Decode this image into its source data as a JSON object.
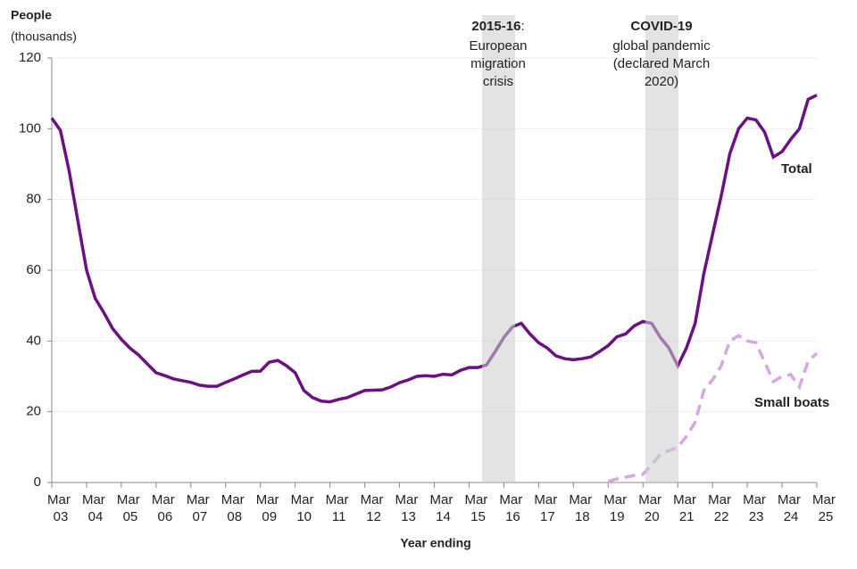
{
  "chart_data": {
    "type": "line",
    "y_label": "People",
    "y_label_sub": "(thousands)",
    "x_label": "Year ending",
    "categories": [
      "Mar 03",
      null,
      null,
      null,
      "Mar 04",
      null,
      null,
      null,
      "Mar 05",
      null,
      null,
      null,
      "Mar 06",
      null,
      null,
      null,
      "Mar 07",
      null,
      null,
      null,
      "Mar 08",
      null,
      null,
      null,
      "Mar 09",
      null,
      null,
      null,
      "Mar 10",
      null,
      null,
      null,
      "Mar 11",
      null,
      null,
      null,
      "Mar 12",
      null,
      null,
      null,
      "Mar 13",
      null,
      null,
      null,
      "Mar 14",
      null,
      null,
      null,
      "Mar 15",
      null,
      null,
      null,
      "Mar 16",
      null,
      null,
      null,
      "Mar 17",
      null,
      null,
      null,
      "Mar 18",
      null,
      null,
      null,
      "Mar 19",
      null,
      null,
      null,
      "Mar 20",
      null,
      null,
      null,
      "Mar 21",
      null,
      null,
      null,
      "Mar 22",
      null,
      null,
      null,
      "Mar 23",
      null,
      null,
      null,
      "Mar 24",
      null,
      null,
      null,
      "Mar 25"
    ],
    "series": [
      {
        "name": "Total",
        "color": "#6a1282",
        "dashed": false,
        "values": [
          103,
          99.5,
          88,
          74,
          60,
          52,
          48,
          43.5,
          40.5,
          38,
          36,
          33.5,
          31,
          30.2,
          29.3,
          28.8,
          28.3,
          27.5,
          27.2,
          27.2,
          28.3,
          29.3,
          30.4,
          31.4,
          31.5,
          34,
          34.5,
          33,
          31,
          26,
          24,
          23,
          22.8,
          23.5,
          24,
          25,
          26,
          26.1,
          26.2,
          27,
          28.2,
          29,
          30,
          30.2,
          30,
          30.6,
          30.4,
          31.7,
          32.5,
          32.5,
          33.2,
          37,
          41,
          44,
          45,
          42,
          39.5,
          38,
          35.8,
          35,
          34.7,
          35,
          35.5,
          37,
          38.7,
          41.2,
          42,
          44.3,
          45.5,
          45,
          41,
          38,
          33,
          38,
          45,
          59,
          70,
          81,
          93,
          100,
          103,
          102.5,
          99,
          92,
          93.5,
          97,
          100,
          108.3,
          109.5
        ]
      },
      {
        "name": "Small boats",
        "color": "#d4a8e2",
        "dashed": true,
        "values": [
          null,
          null,
          null,
          null,
          null,
          null,
          null,
          null,
          null,
          null,
          null,
          null,
          null,
          null,
          null,
          null,
          null,
          null,
          null,
          null,
          null,
          null,
          null,
          null,
          null,
          null,
          null,
          null,
          null,
          null,
          null,
          null,
          null,
          null,
          null,
          null,
          null,
          null,
          null,
          null,
          null,
          null,
          null,
          null,
          null,
          null,
          null,
          null,
          null,
          null,
          null,
          null,
          null,
          null,
          null,
          null,
          null,
          null,
          null,
          null,
          null,
          null,
          null,
          null,
          0.3,
          1,
          1.5,
          2,
          2.3,
          5,
          8,
          9,
          10,
          13,
          17,
          26,
          29,
          33,
          40,
          41.5,
          40,
          39.5,
          34,
          28.5,
          30,
          30.5,
          27,
          34.3,
          36.5
        ]
      }
    ],
    "annotations": [
      {
        "heading": "2015-16",
        "heading_suffix": ":",
        "lines": [
          "European",
          "migration",
          "crisis"
        ]
      },
      {
        "heading": "COVID-19",
        "lines": [
          "global pandemic",
          "(declared March",
          "2020)"
        ]
      }
    ],
    "ylim": [
      0,
      120
    ],
    "yticks": [
      0,
      20,
      40,
      60,
      80,
      100,
      120
    ],
    "grid": true
  }
}
